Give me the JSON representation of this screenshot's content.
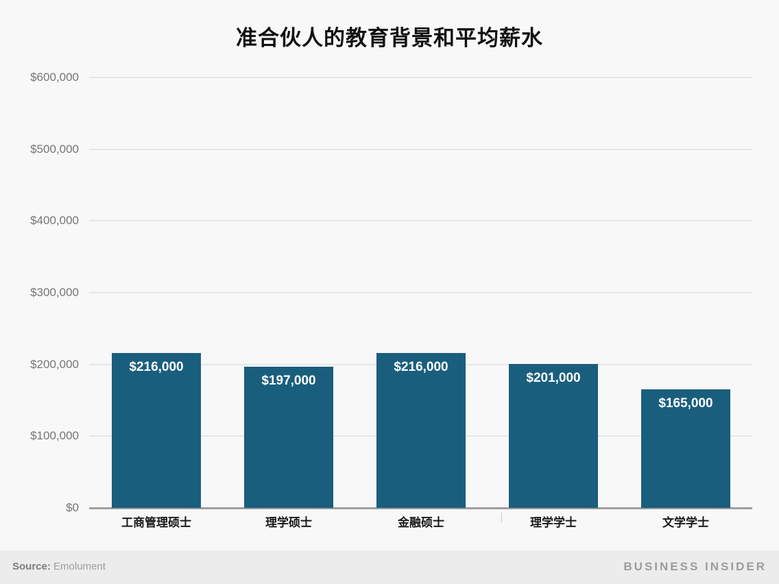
{
  "title": "准合伙人的教育背景和平均薪水",
  "footer": {
    "source_label": "Source:",
    "source_name": "Emolument",
    "branding": "BUSINESS INSIDER"
  },
  "colors": {
    "bar": "#1a5e7d",
    "background": "#f8f8f8",
    "footer_background": "#ececec",
    "gridline": "#e6e6e6",
    "zero_axis": "#9e9e9e",
    "value_label_text": "#ffffff",
    "axis_label_text": "#757575"
  },
  "chart_data": {
    "type": "bar",
    "title": "准合伙人的教育背景和平均薪水",
    "categories": [
      "工商管理硕士",
      "理学硕士",
      "金融硕士",
      "理学学士",
      "文学学士"
    ],
    "values": [
      216000,
      197000,
      216000,
      201000,
      165000
    ],
    "value_labels": [
      "$216,000",
      "$197,000",
      "$216,000",
      "$201,000",
      "$165,000"
    ],
    "xlabel": "",
    "ylabel": "",
    "ylim": [
      0,
      600000
    ],
    "grid": true,
    "legend": false,
    "y_ticks": [
      {
        "value": 0,
        "label": "$0"
      },
      {
        "value": 100000,
        "label": "$100,000"
      },
      {
        "value": 200000,
        "label": "$200,000"
      },
      {
        "value": 300000,
        "label": "$300,000"
      },
      {
        "value": 400000,
        "label": "$400,000"
      },
      {
        "value": 500000,
        "label": "$500,000"
      },
      {
        "value": 600000,
        "label": "$600,000"
      }
    ]
  }
}
